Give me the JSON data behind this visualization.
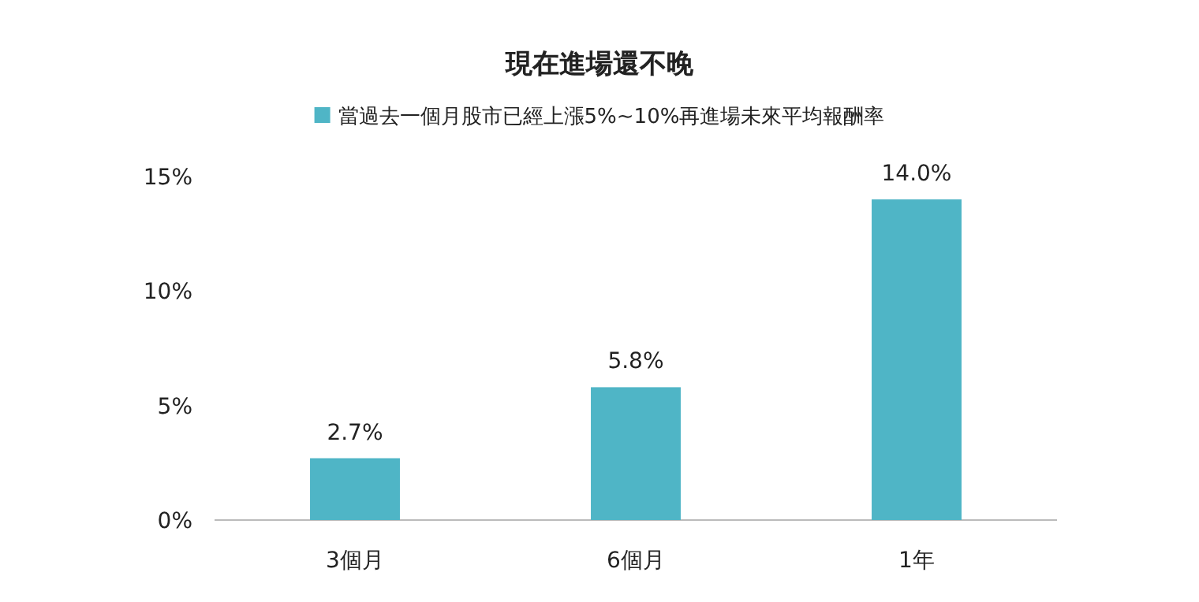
{
  "chart_data": {
    "type": "bar",
    "title": "現在進場還不晚",
    "categories": [
      "3個月",
      "6個月",
      "1年"
    ],
    "series": [
      {
        "name": "當過去一個月股市已經上漲5%~10%再進場未來平均報酬率",
        "color": "#4fb5c6",
        "values": [
          2.7,
          5.8,
          14.0
        ],
        "value_labels": [
          "2.7%",
          "5.8%",
          "14.0%"
        ]
      }
    ],
    "ylim": [
      0,
      15
    ],
    "yticks": [
      {
        "value": 0,
        "label": "0%"
      },
      {
        "value": 5,
        "label": "5%"
      },
      {
        "value": 10,
        "label": "10%"
      },
      {
        "value": 15,
        "label": "15%"
      }
    ],
    "legend": "top",
    "grid": false
  }
}
